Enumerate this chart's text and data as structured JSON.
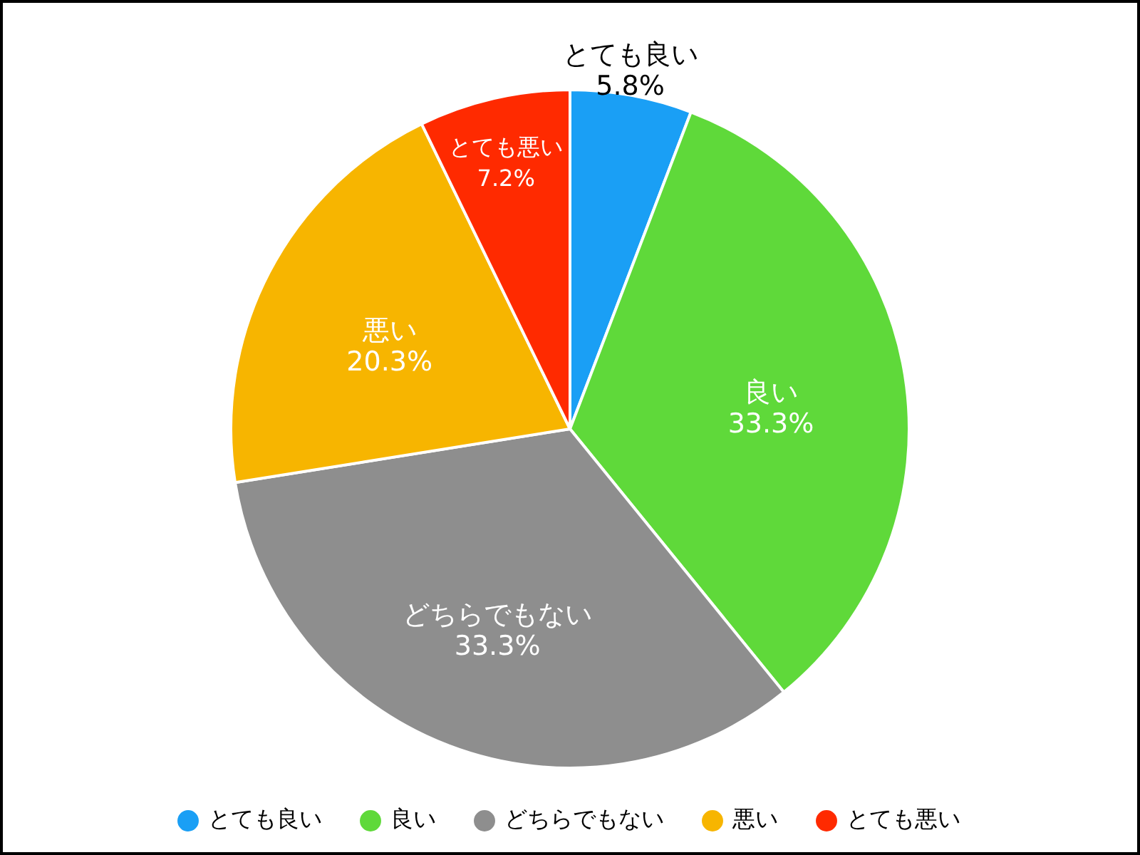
{
  "chart_data": {
    "type": "pie",
    "categories": [
      "とても良い",
      "良い",
      "どちらでもない",
      "悪い",
      "とても悪い"
    ],
    "values": [
      5.8,
      33.3,
      33.3,
      20.3,
      7.2
    ],
    "value_labels": [
      "5.8%",
      "33.3%",
      "33.3%",
      "20.3%",
      "7.2%"
    ],
    "colors": [
      "#1a9ff5",
      "#5fd93a",
      "#8e8e8e",
      "#f7b500",
      "#ff2a00"
    ],
    "legend": "bottom"
  }
}
